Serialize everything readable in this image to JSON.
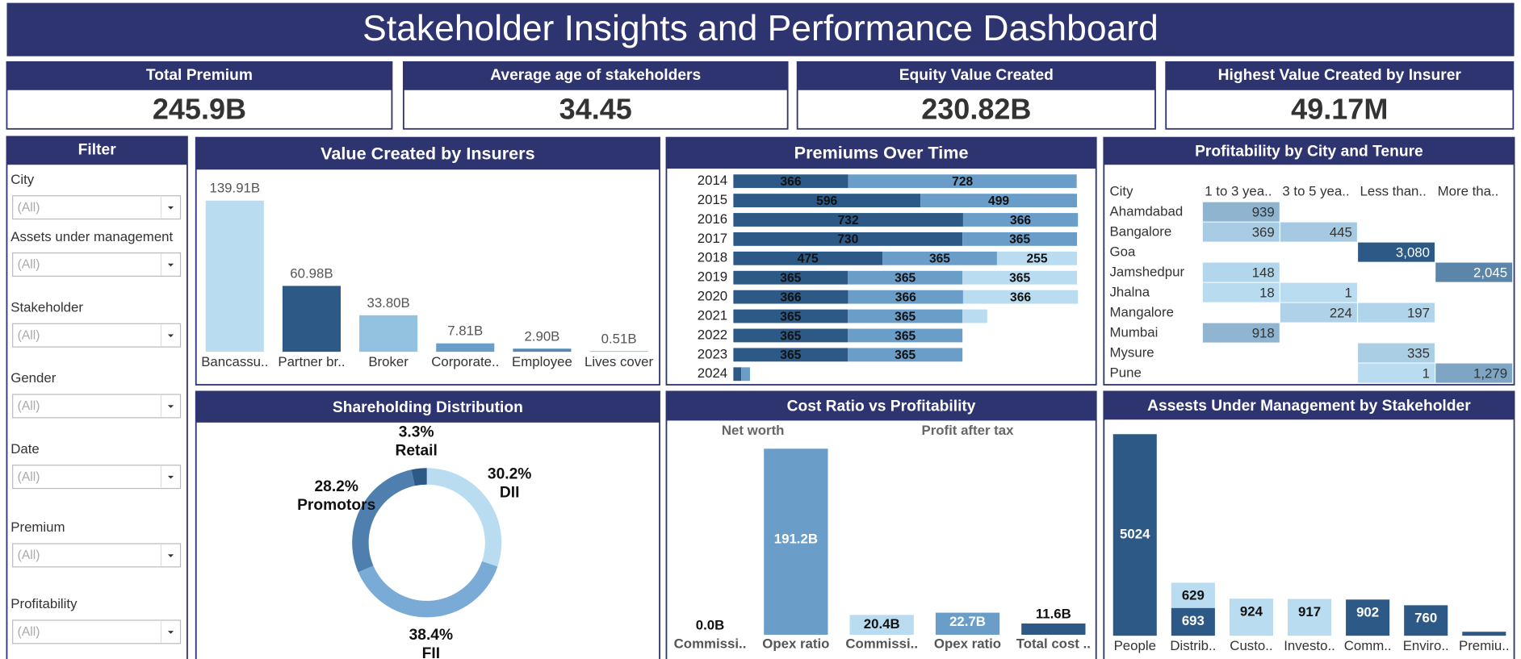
{
  "header": {
    "title": "Stakeholder Insights and Performance Dashboard"
  },
  "kpis": [
    {
      "label": "Total Premium",
      "value": "245.9B"
    },
    {
      "label": "Average age of stakeholders",
      "value": "34.45"
    },
    {
      "label": "Equity Value Created",
      "value": "230.82B"
    },
    {
      "label": "Highest Value Created by Insurer",
      "value": "49.17M"
    }
  ],
  "filter": {
    "title": "Filter",
    "fields": [
      {
        "label": "City",
        "value": "(All)"
      },
      {
        "label": "Assets under management",
        "value": "(All)"
      },
      {
        "label": "Stakeholder",
        "value": "(All)"
      },
      {
        "label": "Gender",
        "value": "(All)"
      },
      {
        "label": "Date",
        "value": "(All)"
      },
      {
        "label": "Premium",
        "value": "(All)"
      },
      {
        "label": "Profitability",
        "value": "(All)"
      }
    ]
  },
  "chart_data": [
    {
      "type": "bar",
      "title": "Value Created by Insurers",
      "categories": [
        "Bancassu..",
        "Partner br..",
        "Broker",
        "Corporate..",
        "Employee",
        "Lives cover"
      ],
      "values": [
        139.91,
        60.98,
        33.8,
        7.81,
        2.9,
        0.51
      ],
      "value_labels": [
        "139.91B",
        "60.98B",
        "33.80B",
        "7.81B",
        "2.90B",
        "0.51B"
      ],
      "colors": [
        "#b9dcf0",
        "#2c5985",
        "#93c1e0",
        "#6a9ec9",
        "#5a88b6",
        "#6a9ec9"
      ]
    },
    {
      "type": "barh",
      "title": "Premiums Over Time",
      "categories": [
        "2014",
        "2015",
        "2016",
        "2017",
        "2018",
        "2019",
        "2020",
        "2021",
        "2022",
        "2023",
        "2024"
      ],
      "series": [
        {
          "color": "#2c5985",
          "values": [
            366,
            596,
            732,
            730,
            475,
            365,
            366,
            365,
            365,
            365,
            25
          ]
        },
        {
          "color": "#6a9ec9",
          "values": [
            728,
            499,
            366,
            365,
            365,
            365,
            366,
            365,
            365,
            365,
            28
          ]
        },
        {
          "color": "#b9dcf0",
          "values": [
            null,
            null,
            null,
            null,
            255,
            365,
            366,
            79,
            null,
            null,
            null
          ]
        }
      ]
    },
    {
      "type": "heatmap",
      "title": "Profitability by City and Tenure",
      "row_header": "City",
      "columns": [
        "1 to 3 yea..",
        "3 to 5 yea..",
        "Less than..",
        "More tha.."
      ],
      "rows": [
        "Ahamdabad",
        "Bangalore",
        "Goa",
        "Jamshedpur",
        "Jhalna",
        "Mangalore",
        "Mumbai",
        "Mysure",
        "Pune"
      ],
      "values": [
        [
          939,
          null,
          null,
          null
        ],
        [
          369,
          445,
          null,
          null
        ],
        [
          null,
          null,
          3080,
          null
        ],
        [
          148,
          null,
          null,
          2045
        ],
        [
          18,
          1,
          null,
          null
        ],
        [
          null,
          224,
          197,
          null
        ],
        [
          918,
          null,
          null,
          null
        ],
        [
          null,
          null,
          335,
          null
        ],
        [
          null,
          null,
          1,
          1279
        ]
      ],
      "value_labels": [
        [
          "939",
          null,
          null,
          null
        ],
        [
          "369",
          "445",
          null,
          null
        ],
        [
          null,
          null,
          "3,080",
          null
        ],
        [
          "148",
          null,
          null,
          "2,045"
        ],
        [
          "18",
          "1",
          null,
          null
        ],
        [
          null,
          "224",
          "197",
          null
        ],
        [
          "918",
          null,
          null,
          null
        ],
        [
          null,
          null,
          "335",
          null
        ],
        [
          null,
          null,
          "1",
          "1,279"
        ]
      ],
      "colors": [
        "#b9dcf0",
        "#2c5985"
      ]
    },
    {
      "type": "donut",
      "title": "Shareholding Distribution",
      "categories": [
        "DII",
        "FII",
        "Promotors",
        "Retail"
      ],
      "values": [
        30.2,
        38.4,
        28.2,
        3.3
      ],
      "value_labels": [
        "30.2%",
        "38.4%",
        "28.2%",
        "3.3%"
      ],
      "colors": [
        "#b9dcf0",
        "#7aaad6",
        "#4e7fae",
        "#2c5985"
      ]
    },
    {
      "type": "faceted_bar",
      "title": "Cost Ratio vs Profitability",
      "groups": [
        {
          "name": "Net worth",
          "categories": [
            "Commissi..",
            "Opex ratio"
          ],
          "values": [
            0.0,
            191.2
          ],
          "value_labels": [
            "0.0B",
            "191.2B"
          ],
          "colors": [
            "#6a9ec9",
            "#6a9ec9"
          ]
        },
        {
          "name": "Profit after tax",
          "categories": [
            "Commissi..",
            "Opex ratio",
            "Total cost .."
          ],
          "values": [
            20.4,
            22.7,
            11.6
          ],
          "value_labels": [
            "20.4B",
            "22.7B",
            "11.6B"
          ],
          "colors": [
            "#b9dcf0",
            "#6a9ec9",
            "#2c5985"
          ]
        }
      ]
    },
    {
      "type": "stacked_bar",
      "title": "Assests Under Management by Stakeholder",
      "categories": [
        "People",
        "Distrib..",
        "Custo..",
        "Investo..",
        "Comm..",
        "Enviro..",
        "Premiu.."
      ],
      "series": [
        {
          "color": "#2c5985",
          "values": [
            5024,
            693,
            null,
            null,
            902,
            760,
            100
          ]
        },
        {
          "color": "#b9dcf0",
          "values": [
            null,
            629,
            924,
            917,
            null,
            null,
            null
          ]
        }
      ]
    }
  ]
}
